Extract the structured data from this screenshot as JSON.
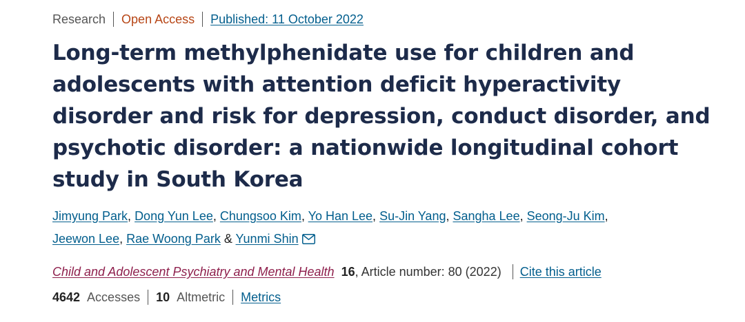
{
  "meta": {
    "article_type": "Research",
    "access": "Open Access",
    "published": "Published: 11 October 2022"
  },
  "title": "Long-term methylphenidate use for children and adolescents with attention deficit hyperactivity disorder and risk for depression, conduct disorder, and psychotic disorder: a nationwide longitudinal cohort study in South Korea",
  "authors": [
    "Jimyung Park",
    "Dong Yun Lee",
    "Chungsoo Kim",
    "Yo Han Lee",
    "Su-Jin Yang",
    "Sangha Lee",
    "Seong-Ju Kim",
    "Jeewon Lee",
    "Rae Woong Park",
    "Yunmi Shin"
  ],
  "author_separators": {
    "comma": ", ",
    "and": " & "
  },
  "journal": {
    "name": "Child and Adolescent Psychiatry and Mental Health",
    "volume": "16",
    "article_info": ", Article number: 80 (2022)",
    "cite_label": "Cite this article"
  },
  "metrics": {
    "accesses_count": "4642",
    "accesses_label": "Accesses",
    "altmetric_count": "10",
    "altmetric_label": "Altmetric",
    "metrics_link": "Metrics"
  },
  "colors": {
    "link": "#025e8d",
    "open_access": "#b74616",
    "journal": "#8e1f4c",
    "title": "#1d2b4a"
  },
  "icons": {
    "corresponding_author": "envelope-icon"
  }
}
